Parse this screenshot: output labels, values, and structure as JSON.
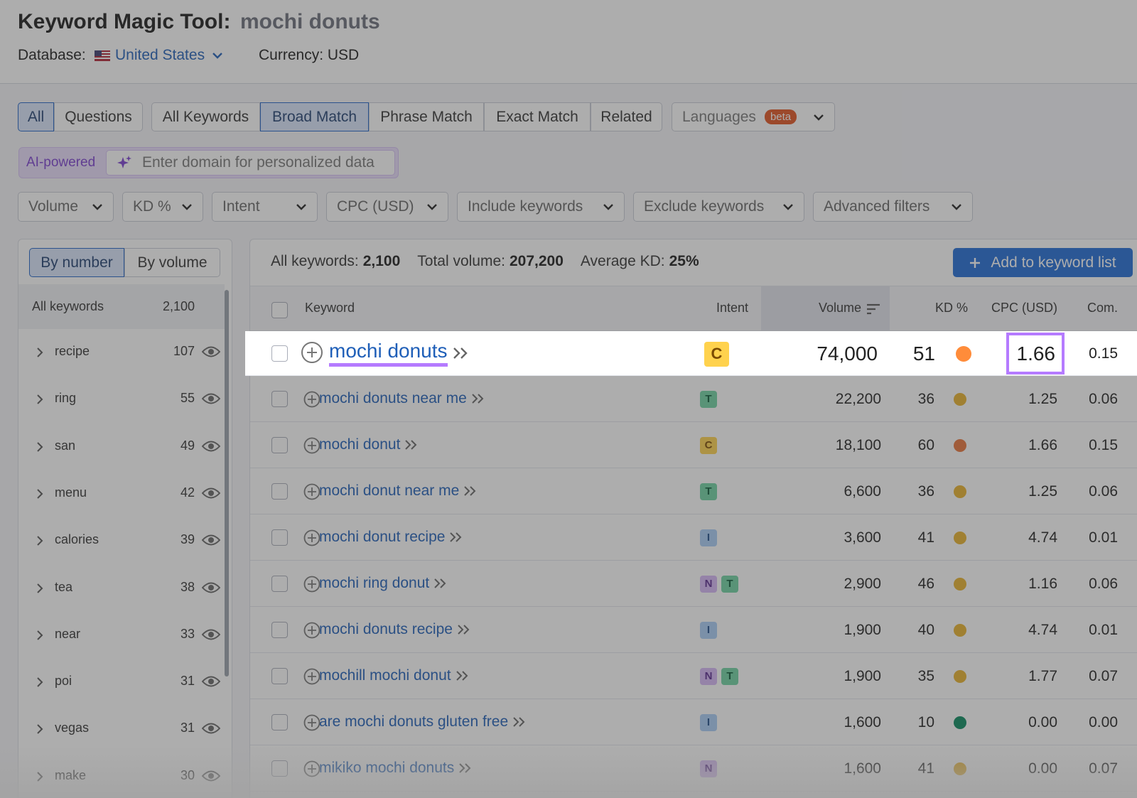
{
  "header": {
    "title": "Keyword Magic Tool:",
    "query": "mochi donuts",
    "database_label": "Database:",
    "database": "United States",
    "currency": "Currency: USD"
  },
  "type_tabs": [
    "All",
    "Questions"
  ],
  "match_tabs": [
    "All Keywords",
    "Broad Match",
    "Phrase Match",
    "Exact Match",
    "Related"
  ],
  "languages": {
    "label": "Languages",
    "badge": "beta"
  },
  "ai": {
    "badge": "AI-powered",
    "placeholder": "Enter domain for personalized data"
  },
  "filters": [
    "Volume",
    "KD %",
    "Intent",
    "CPC (USD)",
    "Include keywords",
    "Exclude keywords",
    "Advanced filters"
  ],
  "sidebar": {
    "toggle": [
      "By number",
      "By volume"
    ],
    "all_label": "All keywords",
    "all_count": "2,100",
    "groups": [
      {
        "label": "recipe",
        "count": "107"
      },
      {
        "label": "ring",
        "count": "55"
      },
      {
        "label": "san",
        "count": "49"
      },
      {
        "label": "menu",
        "count": "42"
      },
      {
        "label": "calories",
        "count": "39"
      },
      {
        "label": "tea",
        "count": "38"
      },
      {
        "label": "near",
        "count": "33"
      },
      {
        "label": "poi",
        "count": "31"
      },
      {
        "label": "vegas",
        "count": "31"
      },
      {
        "label": "make",
        "count": "30"
      }
    ]
  },
  "summary": {
    "all_label": "All keywords:",
    "all_value": "2,100",
    "volume_label": "Total volume:",
    "volume_value": "207,200",
    "kd_label": "Average KD:",
    "kd_value": "25%"
  },
  "add_button": "Add to keyword list",
  "table": {
    "columns": [
      "Keyword",
      "Intent",
      "Volume",
      "KD %",
      "CPC (USD)",
      "Com."
    ],
    "rows": [
      {
        "keyword": "mochi donuts",
        "intent": [
          "C"
        ],
        "volume": "74,000",
        "kd": 51,
        "cpc": "1.66",
        "com": "0.15"
      },
      {
        "keyword": "mochi donuts near me",
        "intent": [
          "T"
        ],
        "volume": "22,200",
        "kd": 36,
        "cpc": "1.25",
        "com": "0.06"
      },
      {
        "keyword": "mochi donut",
        "intent": [
          "C"
        ],
        "volume": "18,100",
        "kd": 60,
        "cpc": "1.66",
        "com": "0.15"
      },
      {
        "keyword": "mochi donut near me",
        "intent": [
          "T"
        ],
        "volume": "6,600",
        "kd": 36,
        "cpc": "1.25",
        "com": "0.06"
      },
      {
        "keyword": "mochi donut recipe",
        "intent": [
          "I"
        ],
        "volume": "3,600",
        "kd": 41,
        "cpc": "4.74",
        "com": "0.01"
      },
      {
        "keyword": "mochi ring donut",
        "intent": [
          "N",
          "T"
        ],
        "volume": "2,900",
        "kd": 46,
        "cpc": "1.16",
        "com": "0.06"
      },
      {
        "keyword": "mochi donuts recipe",
        "intent": [
          "I"
        ],
        "volume": "1,900",
        "kd": 40,
        "cpc": "4.74",
        "com": "0.01"
      },
      {
        "keyword": "mochill mochi donut",
        "intent": [
          "N",
          "T"
        ],
        "volume": "1,900",
        "kd": 35,
        "cpc": "1.77",
        "com": "0.07"
      },
      {
        "keyword": "are mochi donuts gluten free",
        "intent": [
          "I"
        ],
        "volume": "1,600",
        "kd": 10,
        "cpc": "0.00",
        "com": "0.00"
      },
      {
        "keyword": "mikiko mochi donuts",
        "intent": [
          "N"
        ],
        "volume": "1,600",
        "kd": 41,
        "cpc": "0.00",
        "com": "0.07"
      }
    ]
  }
}
